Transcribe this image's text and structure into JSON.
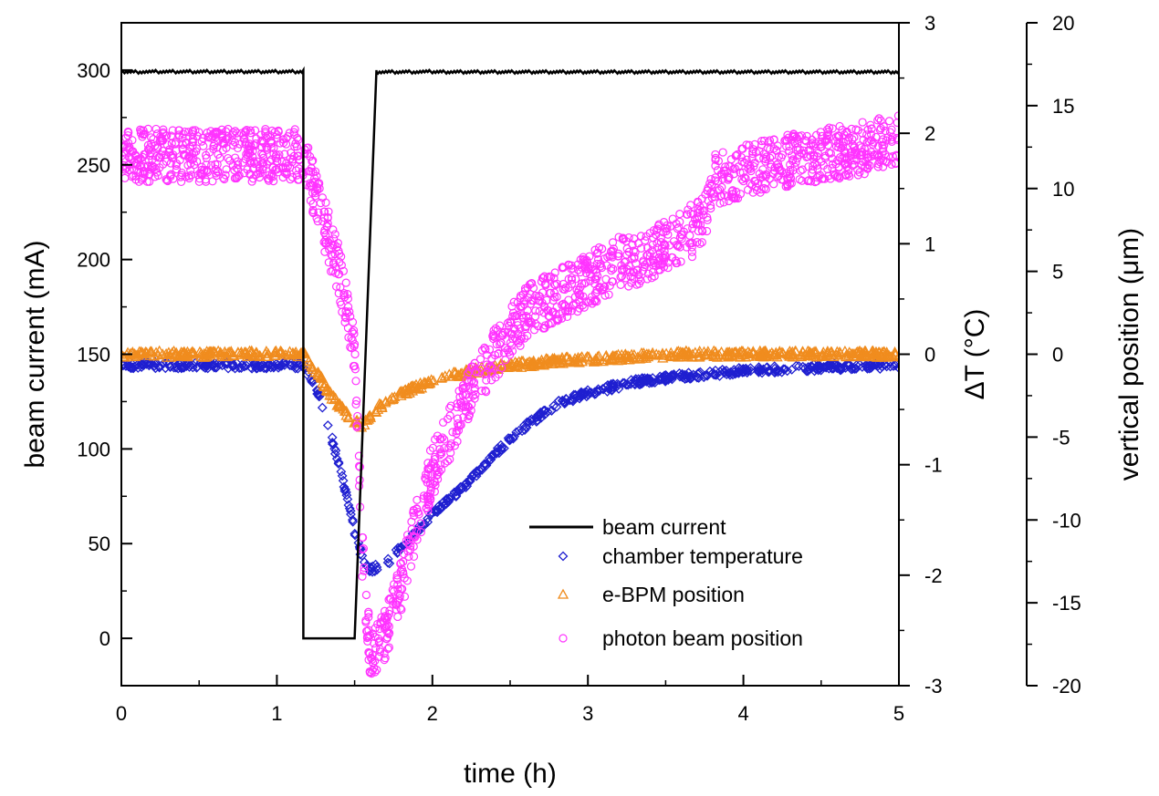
{
  "chart_data": {
    "type": "line",
    "xlabel": "time (h)",
    "xlim": [
      0,
      5
    ],
    "x_ticks": [
      0,
      1,
      2,
      3,
      4,
      5
    ],
    "axes": {
      "left": {
        "label": "beam current (mA)",
        "lim": [
          -25,
          325
        ],
        "ticks": [
          0,
          50,
          100,
          150,
          200,
          250,
          300
        ]
      },
      "right1": {
        "label": "ΔT (°C)",
        "lim": [
          -3,
          3
        ],
        "ticks": [
          -3,
          -2,
          -1,
          0,
          1,
          2,
          3
        ]
      },
      "right2": {
        "label": "vertical position (μm)",
        "lim": [
          -20,
          20
        ],
        "ticks": [
          -20,
          -15,
          -10,
          -5,
          0,
          5,
          10,
          15,
          20
        ]
      }
    },
    "legend_position": "lower-right",
    "series": [
      {
        "name": "beam current",
        "axis": "left",
        "style": "line",
        "color": "#000000",
        "x": [
          0,
          1.17,
          1.17,
          1.5,
          1.64,
          5
        ],
        "y": [
          300,
          300,
          0,
          0,
          300,
          300
        ]
      },
      {
        "name": "chamber temperature",
        "axis": "right1",
        "style": "diamond",
        "color": "#1f1fd0",
        "x": [
          0,
          0.5,
          1.0,
          1.17,
          1.25,
          1.3,
          1.35,
          1.4,
          1.45,
          1.5,
          1.55,
          1.6,
          1.7,
          1.8,
          1.9,
          2.0,
          2.2,
          2.4,
          2.6,
          2.8,
          3.0,
          3.3,
          3.6,
          4.0,
          4.5,
          5.0
        ],
        "y": [
          -0.1,
          -0.1,
          -0.1,
          -0.1,
          -0.3,
          -0.5,
          -0.75,
          -1.0,
          -1.3,
          -1.6,
          -1.85,
          -1.95,
          -1.9,
          -1.75,
          -1.6,
          -1.45,
          -1.2,
          -0.9,
          -0.65,
          -0.45,
          -0.35,
          -0.25,
          -0.2,
          -0.15,
          -0.12,
          -0.1
        ]
      },
      {
        "name": "e-BPM position",
        "axis": "right1",
        "style": "triangle",
        "color": "#f08c1e",
        "x": [
          0,
          0.5,
          1.0,
          1.17,
          1.25,
          1.35,
          1.45,
          1.55,
          1.65,
          1.75,
          1.9,
          2.1,
          2.4,
          2.8,
          3.2,
          3.6,
          4.0,
          4.5,
          5.0
        ],
        "y": [
          0.0,
          0.0,
          0.0,
          0.0,
          -0.15,
          -0.38,
          -0.55,
          -0.65,
          -0.48,
          -0.38,
          -0.3,
          -0.2,
          -0.12,
          -0.06,
          -0.03,
          0.0,
          0.0,
          0.0,
          0.0
        ]
      },
      {
        "name": "photon beam position",
        "axis": "right2",
        "style": "circle",
        "color": "#ff33ff",
        "x": [
          0,
          0.3,
          0.6,
          0.9,
          1.17,
          1.3,
          1.4,
          1.5,
          1.55,
          1.6,
          1.7,
          1.8,
          1.9,
          2.0,
          2.2,
          2.4,
          2.6,
          2.8,
          3.0,
          3.2,
          3.4,
          3.6,
          3.75,
          3.8,
          4.0,
          4.2,
          4.5,
          4.8,
          5.0
        ],
        "y": [
          12,
          12,
          12,
          12,
          12,
          8,
          5,
          0,
          -12,
          -18,
          -17,
          -14,
          -10,
          -7,
          -3,
          0,
          2.5,
          3.5,
          4.5,
          5.5,
          6,
          7,
          8,
          10.5,
          11,
          11.5,
          12,
          12.5,
          13
        ]
      }
    ]
  }
}
